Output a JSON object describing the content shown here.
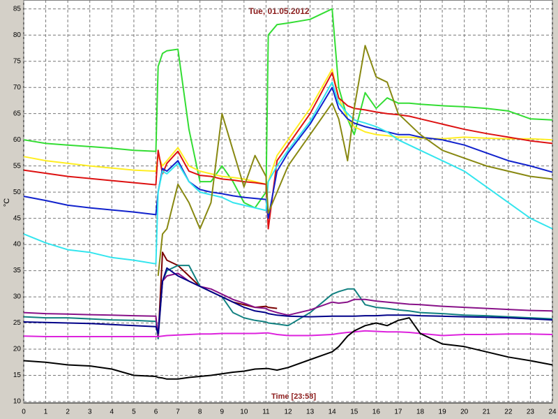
{
  "chart_data": {
    "type": "line",
    "title": "Tue, 01.05.2012",
    "x_label": "Time [23:58]",
    "y_label": "°C",
    "x": [
      0,
      1,
      2,
      3,
      4,
      5,
      6,
      6.1,
      6.3,
      6.5,
      7,
      7.5,
      8,
      8.5,
      9,
      9.5,
      10,
      10.5,
      11,
      11.1,
      11.5,
      12,
      13,
      14,
      14.3,
      14.7,
      15,
      15.5,
      16,
      16.5,
      17,
      17.5,
      18,
      19,
      20,
      21,
      22,
      23,
      24
    ],
    "xlim": [
      0,
      24
    ],
    "xticks": [
      0,
      1,
      2,
      3,
      4,
      5,
      6,
      7,
      8,
      9,
      10,
      11,
      12,
      13,
      14,
      15,
      16,
      17,
      18,
      19,
      20,
      21,
      22,
      23,
      24
    ],
    "ylim": [
      10,
      86.7
    ],
    "yticks": [
      10,
      15,
      20,
      25,
      30,
      35,
      40,
      45,
      50,
      55,
      60,
      65,
      70,
      75,
      80,
      85
    ],
    "grid": true,
    "series": [
      {
        "color": "#33dd33",
        "values": [
          60,
          59.3,
          59,
          58.7,
          58.4,
          58,
          57.8,
          74,
          76.5,
          77,
          77.3,
          62,
          52,
          52,
          55,
          52,
          48,
          47,
          50,
          80,
          82,
          82.3,
          83,
          85,
          70,
          64,
          61,
          69,
          66,
          68,
          67,
          67,
          66.8,
          66.5,
          66.3,
          66,
          65.5,
          64,
          63.8
        ]
      },
      {
        "color": "#ffee22",
        "values": [
          56.8,
          56,
          55.5,
          55,
          54.6,
          54.2,
          54,
          57,
          55,
          56,
          58.5,
          55,
          54,
          53.5,
          53,
          52.8,
          52.5,
          52,
          51.5,
          52,
          57,
          60,
          66,
          73.5,
          68,
          64,
          62.5,
          61.5,
          61,
          60.8,
          60.5,
          60.5,
          60.3,
          60.2,
          60.5,
          60.3,
          60.2,
          60.2,
          60
        ]
      },
      {
        "color": "#dd1111",
        "values": [
          54.2,
          53.6,
          53,
          52.6,
          52.2,
          51.8,
          51.4,
          58,
          53.5,
          55.5,
          57.8,
          54,
          53.2,
          53,
          52.5,
          52.3,
          52,
          51.8,
          51.5,
          43,
          56,
          59,
          65,
          72.8,
          68,
          66.5,
          66,
          65.7,
          65.3,
          65,
          64.8,
          64.5,
          64,
          63,
          62,
          61.2,
          60.5,
          59.8,
          59.3
        ]
      },
      {
        "color": "#1122cc",
        "values": [
          49.2,
          48.4,
          47.5,
          47,
          46.6,
          46.2,
          45.7,
          50,
          54.5,
          54,
          56,
          52,
          50.5,
          50,
          49.7,
          49.3,
          49,
          48.8,
          48.6,
          45,
          54,
          57.5,
          63,
          70,
          66,
          64,
          63.2,
          62.5,
          62,
          61.5,
          61,
          61,
          60.5,
          60,
          59,
          57.5,
          56,
          55,
          53.8
        ]
      },
      {
        "color": "#33e5ee",
        "values": [
          42,
          40.3,
          39,
          38.5,
          37.5,
          37,
          36.3,
          50,
          54,
          53.5,
          55.5,
          52,
          50,
          49.5,
          49,
          48,
          47.5,
          47,
          46.5,
          52,
          55,
          58,
          63.5,
          71,
          67,
          65,
          63.8,
          63.2,
          62.5,
          61.5,
          60,
          59,
          58,
          56,
          54,
          51,
          48,
          45,
          43
        ]
      },
      {
        "color": "#888811",
        "values": [
          null,
          null,
          null,
          null,
          null,
          null,
          null,
          34,
          42,
          43,
          51.5,
          48,
          43,
          48,
          65,
          58,
          51,
          57,
          53,
          46,
          50,
          55,
          61,
          67,
          64,
          56,
          66,
          78,
          72,
          71,
          65,
          63,
          61,
          58,
          56.5,
          55,
          54,
          53,
          52.5
        ]
      },
      {
        "color": "#7a0000",
        "values": [
          null,
          null,
          null,
          null,
          null,
          null,
          26,
          22,
          38.5,
          37,
          36,
          34,
          32,
          31,
          30,
          29,
          28.5,
          28,
          28.2,
          28,
          27.8,
          null,
          null,
          null,
          null,
          null,
          null,
          null,
          null,
          null,
          null,
          null,
          null,
          null,
          null,
          null,
          null,
          null,
          null
        ]
      },
      {
        "color": "#118080",
        "values": [
          26.2,
          26,
          26,
          25.8,
          25.6,
          25.5,
          25.3,
          22,
          33,
          35,
          36,
          36,
          32,
          31,
          30,
          27,
          26,
          25.5,
          25.2,
          25,
          24.8,
          24.5,
          27,
          30.5,
          31,
          31.5,
          31.5,
          28.5,
          28,
          27.8,
          27.5,
          27.3,
          27,
          26.8,
          26.5,
          26.4,
          26.2,
          26,
          25.8
        ]
      },
      {
        "color": "#881188",
        "values": [
          27,
          26.8,
          26.7,
          26.6,
          26.5,
          26.4,
          26.3,
          22.5,
          33,
          34,
          34.5,
          33,
          32,
          31.5,
          30.5,
          29.5,
          28.8,
          28,
          27.8,
          27.5,
          27,
          26.5,
          27.5,
          29,
          28.8,
          29,
          29.5,
          29.5,
          29.2,
          29,
          28.8,
          28.6,
          28.5,
          28.2,
          28,
          27.8,
          27.6,
          27.4,
          27.3
        ]
      },
      {
        "color": "#000088",
        "values": [
          25.2,
          25.1,
          25,
          24.9,
          24.7,
          24.5,
          24.3,
          23,
          33,
          35.5,
          34,
          33,
          32,
          31,
          30,
          29,
          28,
          27.3,
          27,
          26.8,
          26.5,
          26.3,
          26.2,
          26.3,
          26.3,
          26.3,
          26.3,
          26.4,
          26.4,
          26.5,
          26.5,
          26.5,
          26.4,
          26.3,
          26.2,
          26.1,
          26,
          25.8,
          25.6
        ]
      },
      {
        "color": "#dd22dd",
        "values": [
          22.5,
          22.4,
          22.4,
          22.4,
          22.4,
          22.4,
          22.4,
          22.4,
          22.5,
          22.6,
          22.7,
          22.8,
          22.9,
          22.9,
          23,
          23,
          23,
          23,
          23.1,
          23.1,
          22.8,
          22.6,
          22.6,
          22.8,
          23,
          23.2,
          23.3,
          23.5,
          23.4,
          23.3,
          23.3,
          23.2,
          23,
          22.6,
          22.8,
          22.8,
          22.9,
          22.9,
          22.8
        ]
      },
      {
        "color": "#000000",
        "values": [
          17.8,
          17.5,
          17,
          16.8,
          16.2,
          15,
          14.8,
          14.6,
          14.5,
          14.3,
          14.3,
          14.6,
          14.8,
          15,
          15.3,
          15.6,
          15.8,
          16.2,
          16.3,
          16.3,
          16,
          16.5,
          18,
          19.5,
          20.5,
          22.5,
          23.5,
          24.5,
          25,
          24.5,
          25.5,
          26,
          23,
          21,
          20.5,
          19.5,
          18.5,
          17.8,
          17
        ]
      }
    ]
  }
}
